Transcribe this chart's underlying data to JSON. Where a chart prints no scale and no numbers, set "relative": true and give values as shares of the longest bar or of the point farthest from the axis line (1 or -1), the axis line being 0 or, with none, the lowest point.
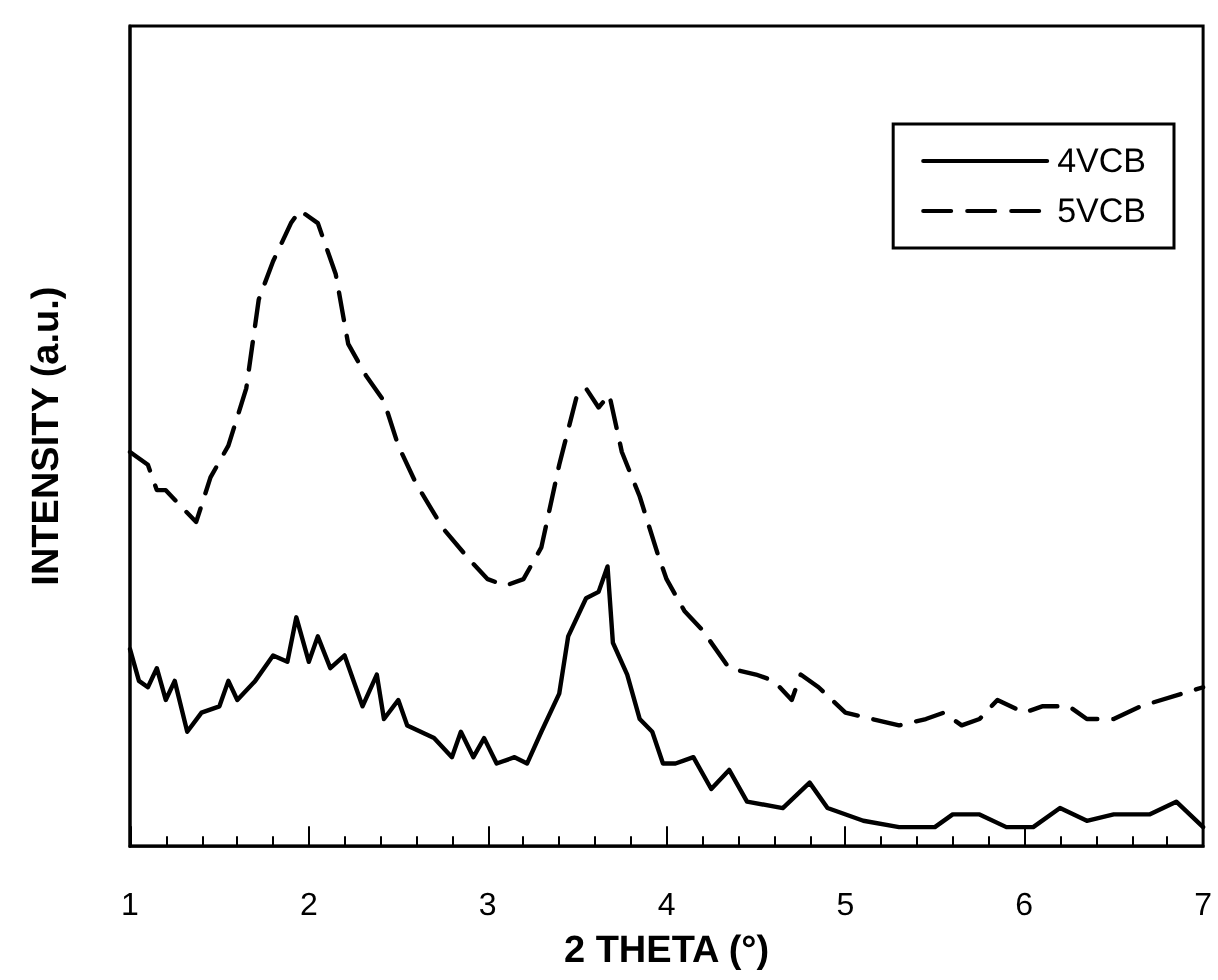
{
  "chart_data": {
    "type": "line",
    "relative": true,
    "xlabel": "2 THETA (°)",
    "ylabel": "INTENSITY (a.u.)",
    "xlim": [
      1,
      7
    ],
    "xticks": [
      1,
      2,
      3,
      4,
      5,
      6,
      7
    ],
    "grid": false,
    "legend": "top right",
    "marker": "none",
    "series": [
      {
        "name": "4VCB",
        "color": "#000000",
        "line_style": "solid",
        "x": [
          1.0,
          1.05,
          1.1,
          1.15,
          1.2,
          1.25,
          1.32,
          1.4,
          1.5,
          1.55,
          1.6,
          1.7,
          1.8,
          1.88,
          1.93,
          2.0,
          2.05,
          2.12,
          2.2,
          2.3,
          2.38,
          2.42,
          2.5,
          2.55,
          2.7,
          2.8,
          2.85,
          2.92,
          2.98,
          3.05,
          3.15,
          3.22,
          3.3,
          3.4,
          3.45,
          3.55,
          3.62,
          3.67,
          3.7,
          3.78,
          3.85,
          3.92,
          3.98,
          4.05,
          4.15,
          4.25,
          4.35,
          4.45,
          4.65,
          4.8,
          4.9,
          5.1,
          5.3,
          5.5,
          5.6,
          5.75,
          5.9,
          6.05,
          6.2,
          6.35,
          6.5,
          6.7,
          6.85,
          7.0
        ],
        "values": [
          0.31,
          0.26,
          0.25,
          0.28,
          0.23,
          0.26,
          0.18,
          0.21,
          0.22,
          0.26,
          0.23,
          0.26,
          0.3,
          0.29,
          0.36,
          0.29,
          0.33,
          0.28,
          0.3,
          0.22,
          0.27,
          0.2,
          0.23,
          0.19,
          0.17,
          0.14,
          0.18,
          0.14,
          0.17,
          0.13,
          0.14,
          0.13,
          0.18,
          0.24,
          0.33,
          0.39,
          0.4,
          0.44,
          0.32,
          0.27,
          0.2,
          0.18,
          0.13,
          0.13,
          0.14,
          0.09,
          0.12,
          0.07,
          0.06,
          0.1,
          0.06,
          0.04,
          0.03,
          0.03,
          0.05,
          0.05,
          0.03,
          0.03,
          0.06,
          0.04,
          0.05,
          0.05,
          0.07,
          0.03
        ]
      },
      {
        "name": "5VCB",
        "color": "#000000",
        "line_style": "dashed",
        "x": [
          1.0,
          1.1,
          1.15,
          1.2,
          1.3,
          1.37,
          1.45,
          1.55,
          1.65,
          1.72,
          1.8,
          1.9,
          1.95,
          2.0,
          2.05,
          2.15,
          2.22,
          2.32,
          2.42,
          2.5,
          2.6,
          2.75,
          2.9,
          3.0,
          3.1,
          3.2,
          3.3,
          3.4,
          3.5,
          3.55,
          3.62,
          3.68,
          3.75,
          3.85,
          3.95,
          4.0,
          4.1,
          4.2,
          4.35,
          4.5,
          4.6,
          4.7,
          4.75,
          4.85,
          5.0,
          5.15,
          5.3,
          5.45,
          5.55,
          5.65,
          5.75,
          5.85,
          6.0,
          6.1,
          6.25,
          6.35,
          6.5,
          6.65,
          7.0
        ],
        "values": [
          0.62,
          0.6,
          0.56,
          0.56,
          0.53,
          0.51,
          0.58,
          0.63,
          0.72,
          0.86,
          0.92,
          0.98,
          1,
          0.99,
          0.98,
          0.9,
          0.79,
          0.74,
          0.7,
          0.63,
          0.57,
          0.5,
          0.45,
          0.42,
          0.41,
          0.42,
          0.47,
          0.6,
          0.71,
          0.72,
          0.69,
          0.71,
          0.62,
          0.55,
          0.46,
          0.42,
          0.37,
          0.34,
          0.28,
          0.27,
          0.26,
          0.23,
          0.27,
          0.25,
          0.21,
          0.2,
          0.19,
          0.2,
          0.21,
          0.19,
          0.2,
          0.23,
          0.21,
          0.22,
          0.22,
          0.2,
          0.2,
          0.22,
          0.25
        ]
      }
    ]
  }
}
